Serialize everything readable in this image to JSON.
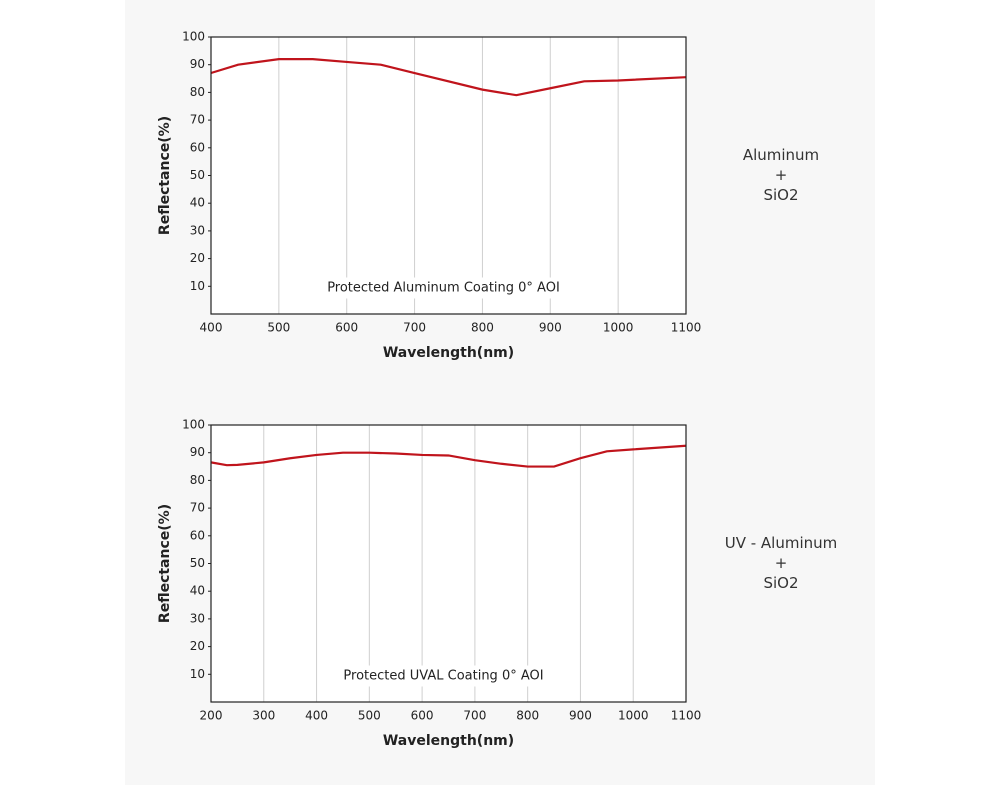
{
  "chart_data": [
    {
      "type": "line",
      "annotation": "Protected Aluminum Coating 0°  AOI",
      "side_label": [
        "Aluminum",
        "+",
        "SiO2"
      ],
      "xlabel": "Wavelength(nm)",
      "ylabel": "Reflectance(%)",
      "xlim": [
        400,
        1100
      ],
      "xticks": [
        400,
        500,
        600,
        700,
        800,
        900,
        1000,
        1100
      ],
      "ylim": [
        0,
        100
      ],
      "yticks": [
        10,
        20,
        30,
        40,
        50,
        60,
        70,
        80,
        90,
        100
      ],
      "grid": "x",
      "series": [
        {
          "color": "#c0141c",
          "x": [
            400,
            440,
            500,
            550,
            600,
            650,
            700,
            800,
            850,
            900,
            950,
            1000,
            1100
          ],
          "values": [
            87,
            90,
            92,
            92,
            91,
            90,
            87,
            81,
            79,
            81.5,
            84,
            84.3,
            85.5
          ]
        }
      ]
    },
    {
      "type": "line",
      "annotation": "Protected UVAL Coating 0°  AOI",
      "side_label": [
        "UV - Aluminum",
        "+",
        "SiO2"
      ],
      "xlabel": "Wavelength(nm)",
      "ylabel": "Reflectance(%)",
      "xlim": [
        200,
        1100
      ],
      "xticks": [
        200,
        300,
        400,
        500,
        600,
        700,
        800,
        900,
        1000,
        1100
      ],
      "ylim": [
        0,
        100
      ],
      "yticks": [
        10,
        20,
        30,
        40,
        50,
        60,
        70,
        80,
        90,
        100
      ],
      "grid": "x",
      "series": [
        {
          "color": "#c0141c",
          "x": [
            200,
            230,
            250,
            300,
            350,
            400,
            450,
            500,
            550,
            600,
            650,
            700,
            750,
            800,
            850,
            900,
            950,
            1000,
            1100
          ],
          "values": [
            86.5,
            85.5,
            85.6,
            86.5,
            88,
            89.2,
            90,
            90,
            89.7,
            89.2,
            89,
            87.3,
            86,
            85,
            85,
            88,
            90.5,
            91.2,
            92.5
          ]
        }
      ]
    }
  ]
}
